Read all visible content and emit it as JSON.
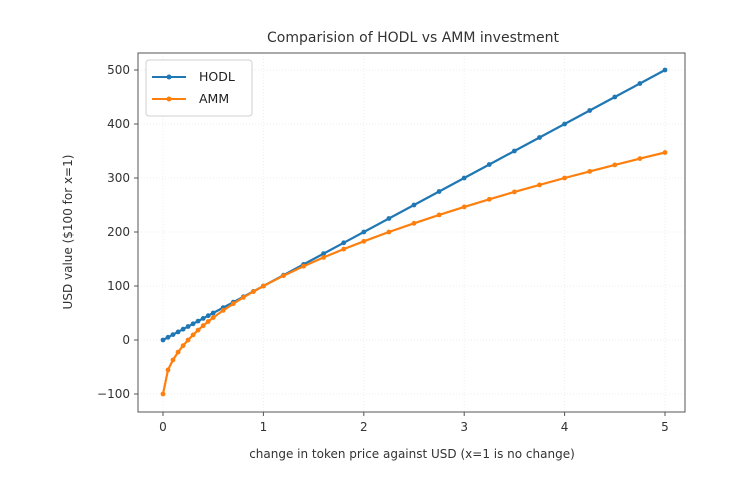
{
  "chart_data": {
    "type": "line",
    "title": "Comparision of HODL vs AMM investment",
    "xlabel": "change in token price against USD (x=1 is no change)",
    "ylabel": "USD value ($100 for x=1)",
    "xlim": [
      -0.25,
      5.2
    ],
    "ylim": [
      -130,
      530
    ],
    "xticks": [
      0,
      1,
      2,
      3,
      4,
      5
    ],
    "xtick_labels": [
      "0",
      "1",
      "2",
      "3",
      "4",
      "5"
    ],
    "yticks": [
      -100,
      0,
      100,
      200,
      300,
      400,
      500
    ],
    "ytick_labels": [
      "−100",
      "0",
      "100",
      "200",
      "300",
      "400",
      "500"
    ],
    "grid": true,
    "legend_position": "top-left",
    "x": [
      0,
      0.05,
      0.1,
      0.15,
      0.2,
      0.25,
      0.3,
      0.35,
      0.4,
      0.45,
      0.5,
      0.6,
      0.7,
      0.8,
      0.9,
      1.0,
      1.2,
      1.4,
      1.6,
      1.8,
      2.0,
      2.25,
      2.5,
      2.75,
      3.0,
      3.25,
      3.5,
      3.75,
      4.0,
      4.25,
      4.5,
      4.75,
      5.0
    ],
    "series": [
      {
        "name": "HODL",
        "color": "#1f77b4",
        "marker": "dot",
        "values": [
          0,
          5,
          10,
          15,
          20,
          25,
          30,
          35,
          40,
          45,
          50,
          60,
          70,
          80,
          90,
          100,
          120,
          140,
          160,
          180,
          200,
          225,
          250,
          275,
          300,
          325,
          350,
          375,
          400,
          425,
          450,
          475,
          500
        ]
      },
      {
        "name": "AMM",
        "color": "#ff7f0e",
        "marker": "dot",
        "values": [
          -100,
          -55.3,
          -36.8,
          -22.5,
          -10.6,
          0,
          9.5,
          18.3,
          26.5,
          34.2,
          41.4,
          54.9,
          67.3,
          78.9,
          89.7,
          100,
          119.1,
          136.6,
          153.0,
          168.3,
          182.8,
          200,
          216.2,
          231.7,
          246.4,
          260.6,
          274.2,
          287.3,
          300,
          312.3,
          324.3,
          335.9,
          347.2
        ]
      }
    ]
  }
}
